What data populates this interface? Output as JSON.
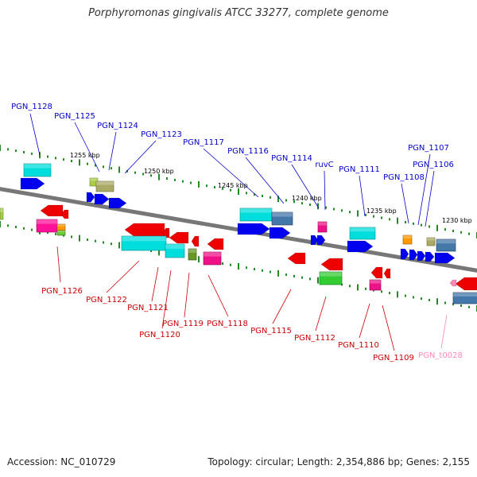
{
  "title": "Porphyromonas gingivalis ATCC 33277, complete genome",
  "footer": {
    "accession": "Accession: NC_010729",
    "summary": "Topology: circular; Length: 2,354,886 bp; Genes: 2,155"
  },
  "colors": {
    "plus_label": "#0000cc",
    "minus_label": "#cc0000",
    "trna_label": "#ff88bb",
    "backbone": "#777777",
    "tick": "#228B22"
  },
  "scale_labels": [
    "1255 kbp",
    "1250 kbp",
    "1245 kbp",
    "1240 kbp",
    "1235 kbp",
    "1230 kbp"
  ],
  "genes_plus": [
    "PGN_1128",
    "PGN_1125",
    "PGN_1124",
    "PGN_1123",
    "PGN_1117",
    "PGN_1116",
    "PGN_1114",
    "ruvC",
    "PGN_1111",
    "PGN_1108",
    "PGN_1107",
    "PGN_1106"
  ],
  "genes_minus": [
    "PGN_1126",
    "PGN_1122",
    "PGN_1121",
    "PGN_1120",
    "PGN_1119",
    "PGN_1118",
    "PGN_1115",
    "PGN_1112",
    "PGN_1110",
    "PGN_1109",
    "PGN_t0028"
  ]
}
